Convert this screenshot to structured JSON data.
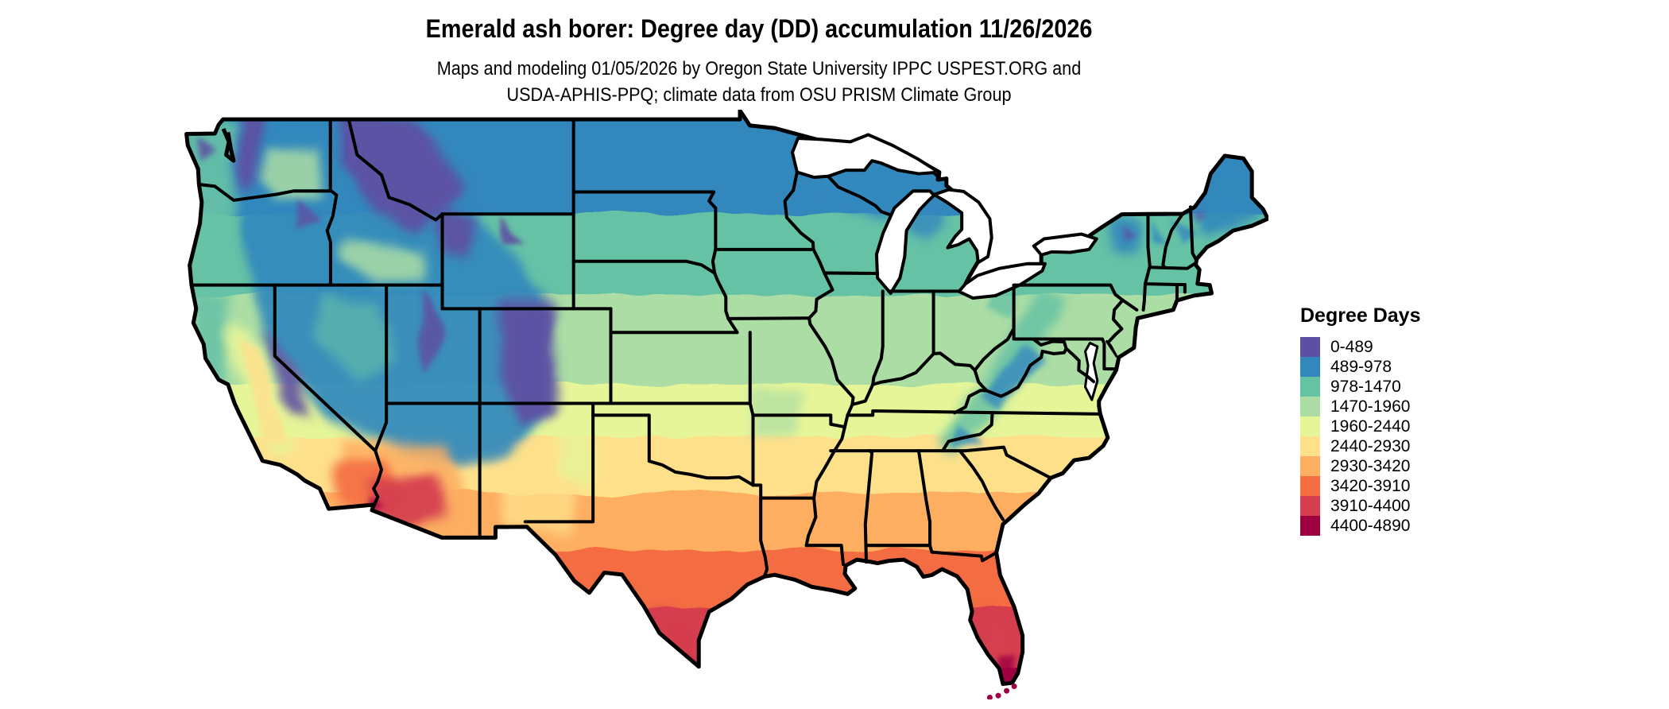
{
  "header": {
    "title": "Emerald ash borer: Degree day (DD) accumulation 11/26/2026",
    "subtitle_line1": "Maps and modeling 01/05/2026 by Oregon State University IPPC USPEST.ORG and",
    "subtitle_line2": "USDA-APHIS-PPQ; climate data from OSU PRISM Climate Group"
  },
  "legend": {
    "title": "Degree Days",
    "items": [
      {
        "label": "0-489",
        "color": "#5e4fa2"
      },
      {
        "label": "489-978",
        "color": "#3288bd"
      },
      {
        "label": "978-1470",
        "color": "#66c2a5"
      },
      {
        "label": "1470-1960",
        "color": "#abdda4"
      },
      {
        "label": "1960-2440",
        "color": "#e6f598"
      },
      {
        "label": "2440-2930",
        "color": "#fee08b"
      },
      {
        "label": "2930-3420",
        "color": "#fdae61"
      },
      {
        "label": "3420-3910",
        "color": "#f46d43"
      },
      {
        "label": "3910-4400",
        "color": "#d53e4f"
      },
      {
        "label": "4400-4890",
        "color": "#9e0142"
      }
    ]
  },
  "map": {
    "region": "Contiguous United States",
    "type": "raster choropleth of accumulated degree days",
    "border_color": "#000000",
    "water_color": "#ffffff"
  }
}
